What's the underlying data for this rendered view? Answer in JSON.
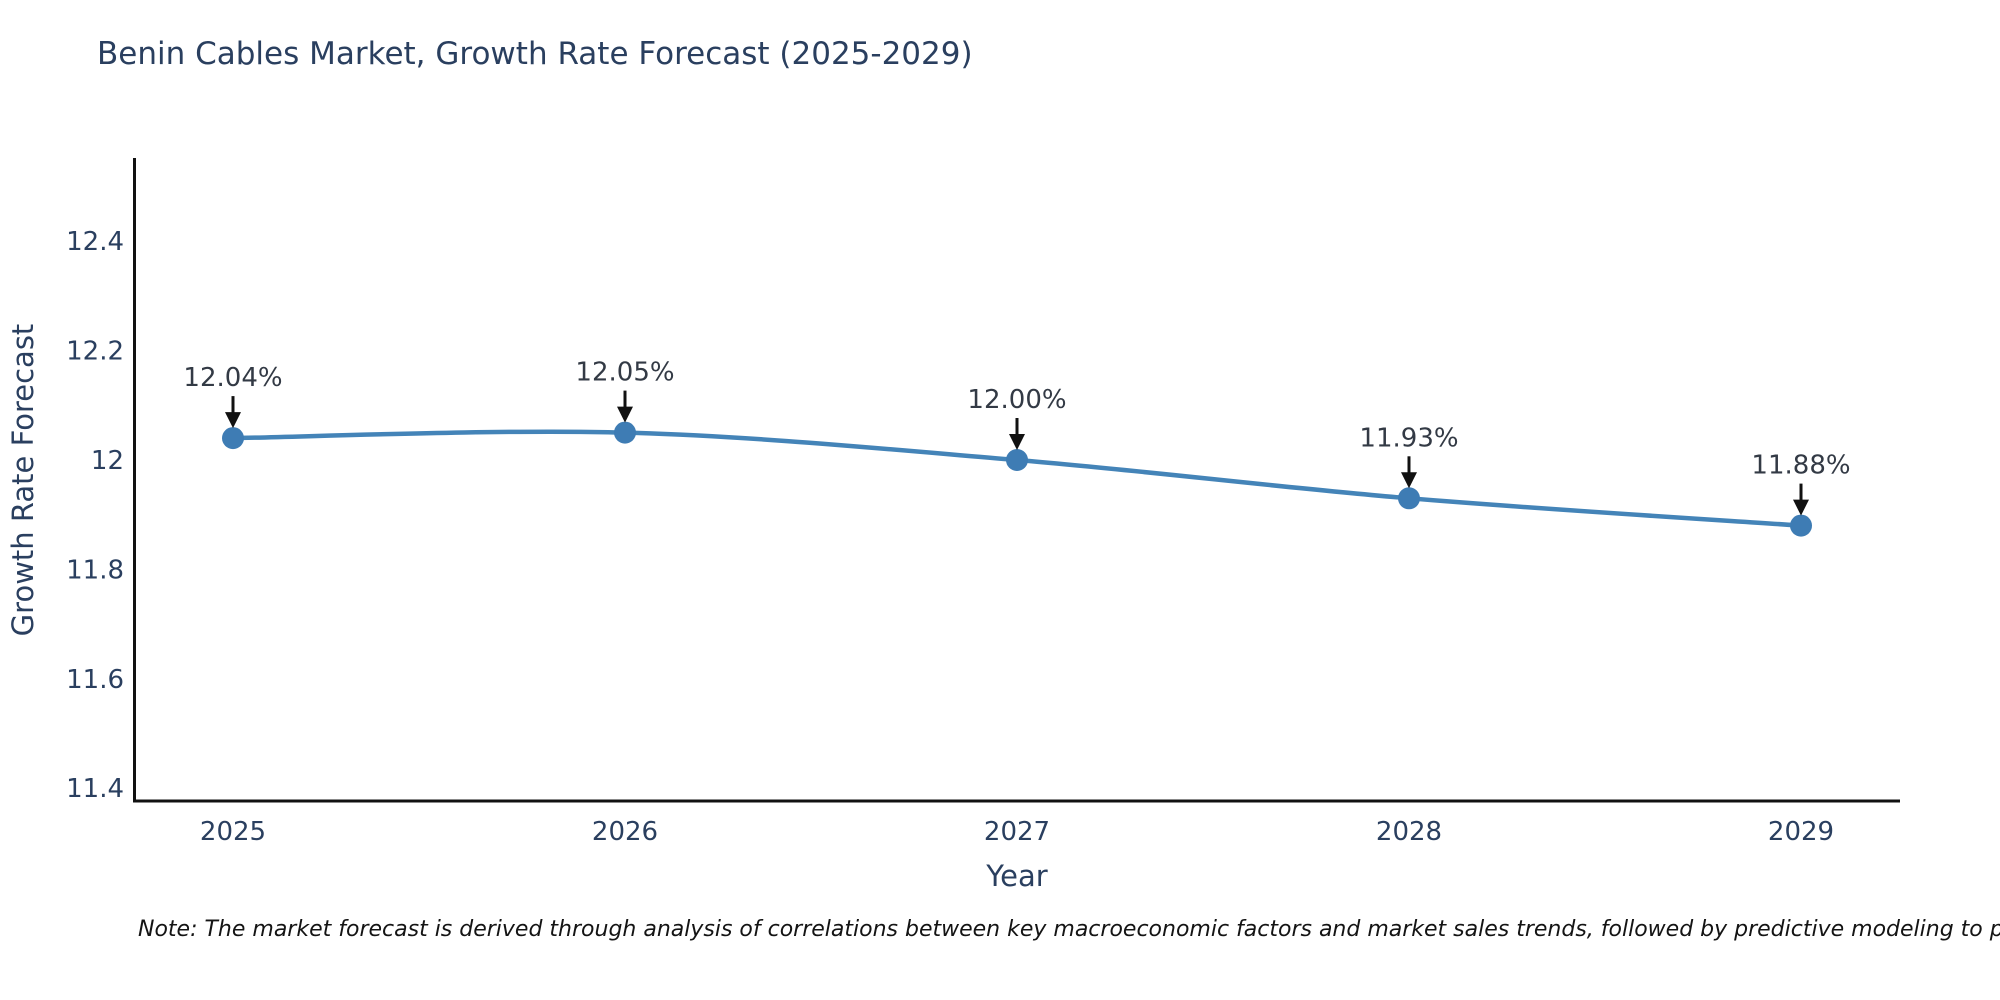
{
  "title": "Benin Cables Market, Growth Rate Forecast (2025-2029)",
  "note": "Note: The market forecast is derived through analysis of correlations between key macroeconomic factors and market sales trends, followed by predictive modeling to project future sal",
  "chart_data": {
    "type": "line",
    "title": "Benin Cables Market, Growth Rate Forecast (2025-2029)",
    "xlabel": "Year",
    "ylabel": "Growth Rate Forecast",
    "categories": [
      "2025",
      "2026",
      "2027",
      "2028",
      "2029"
    ],
    "values": [
      12.04,
      12.05,
      12.0,
      11.93,
      11.88
    ],
    "point_labels": [
      "12.04%",
      "12.05%",
      "12.00%",
      "11.93%",
      "11.88%"
    ],
    "y_tick_labels": [
      "11.4",
      "11.6",
      "11.8",
      "12",
      "12.2",
      "12.4"
    ],
    "ylim": [
      11.38,
      12.55
    ],
    "xlim": [
      2024.75,
      2029.25
    ],
    "grid": false,
    "legend_position": "none",
    "line_shape": "spline",
    "annotation_style": "arrow-down-to-point",
    "colors": {
      "line": "#4484b8",
      "marker": "#3e7cb4",
      "text": "#2a3f5f",
      "annotation_text": "#333a45",
      "annotation_arrow": "#111111",
      "axis": "#111111",
      "note_text": "#141414",
      "background": "#ffffff"
    }
  }
}
